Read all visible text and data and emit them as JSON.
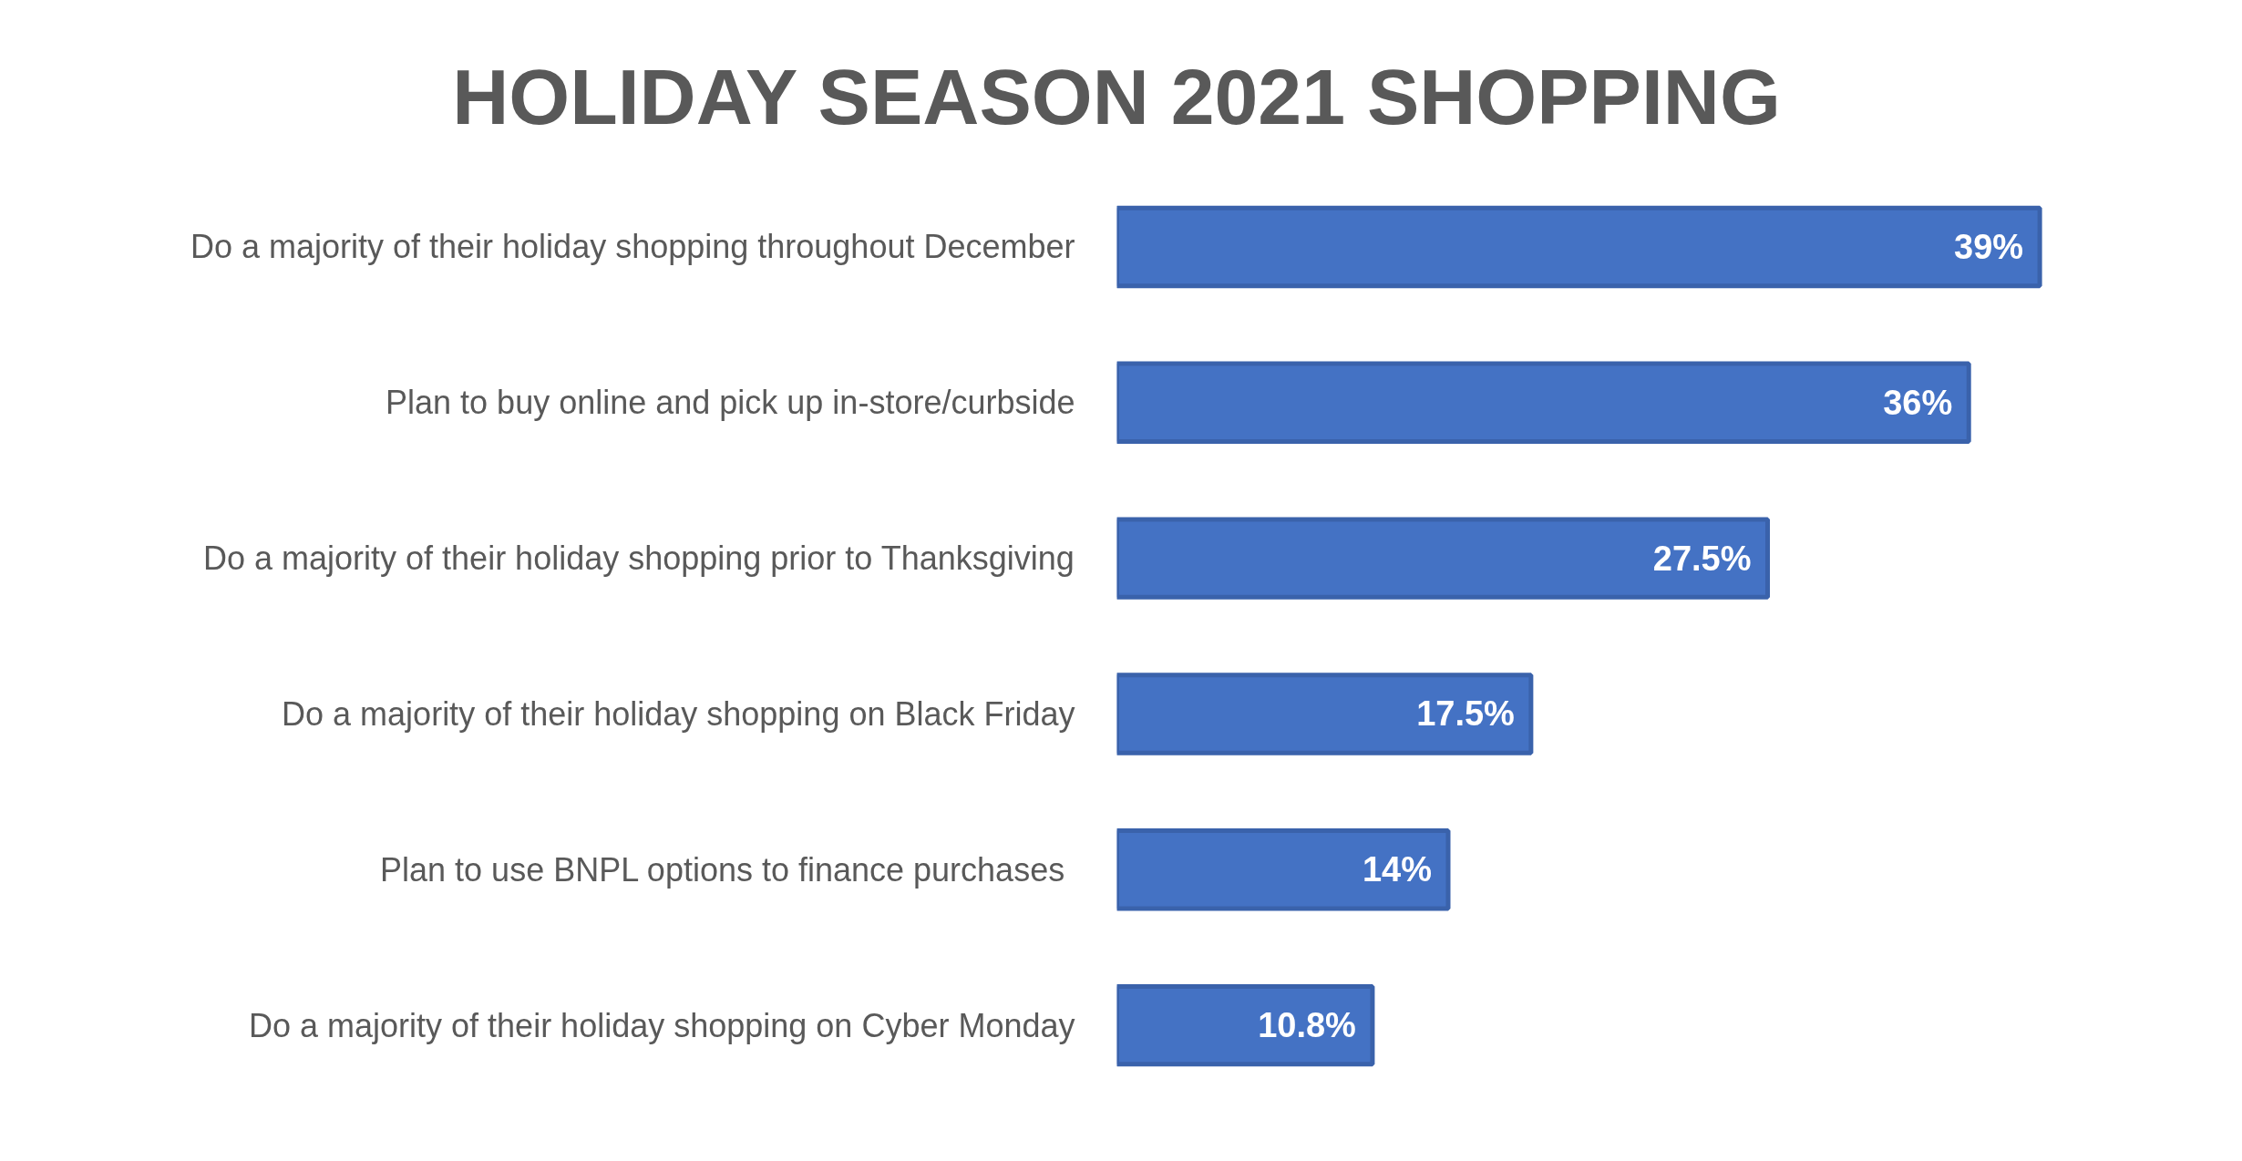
{
  "chart_data": {
    "type": "bar",
    "orientation": "horizontal",
    "title": "HOLIDAY SEASON 2021 SHOPPING",
    "categories": [
      "Do a majority of their holiday shopping throughout December",
      "Plan to buy online and pick up in-store/curbside",
      "Do a majority of their holiday shopping prior to Thanksgiving",
      "Do a majority of their holiday shopping on Black Friday",
      "Plan to use BNPL options to finance purchases ",
      "Do a majority of their holiday shopping on Cyber Monday"
    ],
    "values": [
      39,
      36,
      27.5,
      17.5,
      14,
      10.8
    ],
    "value_labels": [
      "39%",
      "36%",
      "27.5%",
      "17.5%",
      "14%",
      "10.8%"
    ],
    "color": "#4472c4",
    "grid": false
  }
}
